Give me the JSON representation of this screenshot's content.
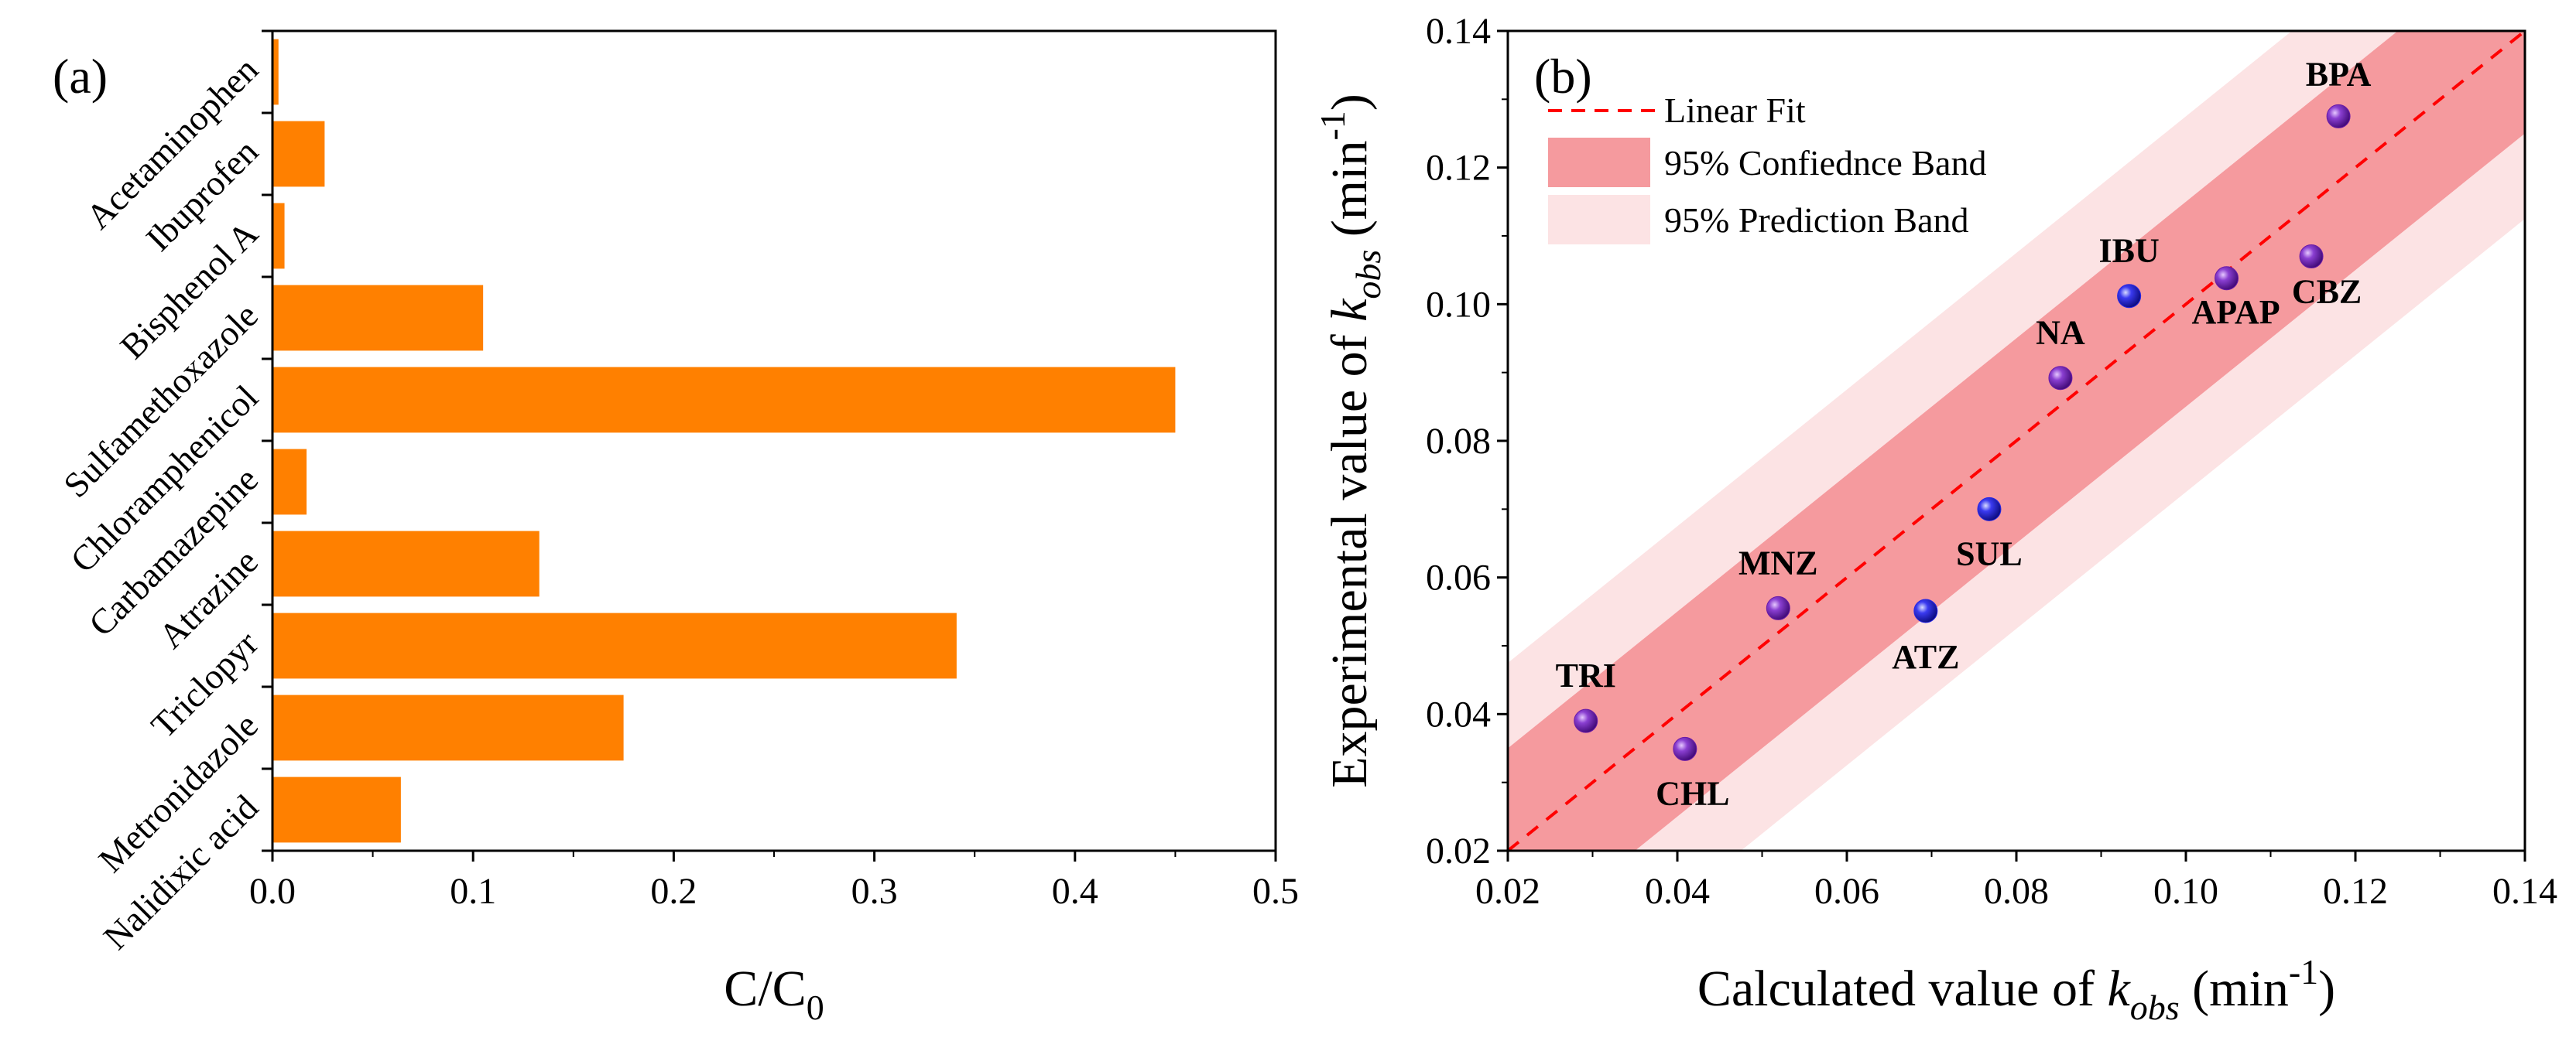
{
  "chart_data": [
    {
      "type": "bar",
      "orientation": "horizontal",
      "panel_label": "(a)",
      "categories": [
        "Acetaminophen",
        "Ibuprofen",
        "Bisphenol A",
        "Sulfamethoxazole",
        "Chloramphenicol",
        "Carbamazepine",
        "Atrazine",
        "Triclopyr",
        "Metronidazole",
        "Nalidixic acid"
      ],
      "values": [
        0.003,
        0.026,
        0.006,
        0.105,
        0.45,
        0.017,
        0.133,
        0.341,
        0.175,
        0.064
      ],
      "xlabel_main": "C/C",
      "xlabel_sub": "0",
      "xlim": [
        0.0,
        0.5
      ],
      "xticks": [
        "0.0",
        "0.1",
        "0.2",
        "0.3",
        "0.4",
        "0.5"
      ],
      "bar_color": "#FF8000"
    },
    {
      "type": "scatter",
      "panel_label": "(b)",
      "points": [
        {
          "label": "BPA",
          "x": 0.118,
          "y": 0.1275,
          "color": "#6A1AA8"
        },
        {
          "label": "IBU",
          "x": 0.0933,
          "y": 0.1012,
          "color": "#2626E6"
        },
        {
          "label": "APAP",
          "x": 0.1048,
          "y": 0.1038,
          "color": "#6A1AA8"
        },
        {
          "label": "CBZ",
          "x": 0.1148,
          "y": 0.107,
          "color": "#6A1AA8"
        },
        {
          "label": "NA",
          "x": 0.0852,
          "y": 0.0892,
          "color": "#6A1AA8"
        },
        {
          "label": "SUL",
          "x": 0.0768,
          "y": 0.07,
          "color": "#2626E6"
        },
        {
          "label": "ATZ",
          "x": 0.0693,
          "y": 0.0551,
          "color": "#2626E6"
        },
        {
          "label": "MNZ",
          "x": 0.0519,
          "y": 0.0555,
          "color": "#6A1AA8"
        },
        {
          "label": "TRI",
          "x": 0.0292,
          "y": 0.039,
          "color": "#6A1AA8"
        },
        {
          "label": "CHL",
          "x": 0.0409,
          "y": 0.0349,
          "color": "#6A1AA8"
        }
      ],
      "fit": {
        "slope": 1.0,
        "intercept": 0.0
      },
      "confidence_halfwidth_ends": [
        0.015,
        0.015
      ],
      "prediction_halfwidth_ends": [
        0.0275,
        0.0275
      ],
      "xlim": [
        0.02,
        0.14
      ],
      "ylim": [
        0.02,
        0.14
      ],
      "xticks": [
        "0.02",
        "0.04",
        "0.06",
        "0.08",
        "0.10",
        "0.12",
        "0.14"
      ],
      "yticks": [
        "0.02",
        "0.04",
        "0.06",
        "0.08",
        "0.10",
        "0.12",
        "0.14"
      ],
      "xlabel": {
        "prefix": "Calculated value of ",
        "k": "k",
        "sub": "obs",
        "unit_open": " (min",
        "unit_sup": "-1",
        "unit_close": ")"
      },
      "ylabel": {
        "prefix": "Experimental value of ",
        "k": "k",
        "sub": "obs",
        "unit_open": " (min",
        "unit_sup": "-1",
        "unit_close": ")"
      },
      "legend": {
        "position": "top-left",
        "items": [
          {
            "label": "Linear Fit",
            "kind": "dashed-line",
            "color": "#FF0000"
          },
          {
            "label": "95% Confiednce Band",
            "kind": "band",
            "color": "#F59A9E"
          },
          {
            "label": "95% Prediction Band",
            "kind": "band",
            "color": "#FCE3E4"
          }
        ]
      }
    }
  ]
}
